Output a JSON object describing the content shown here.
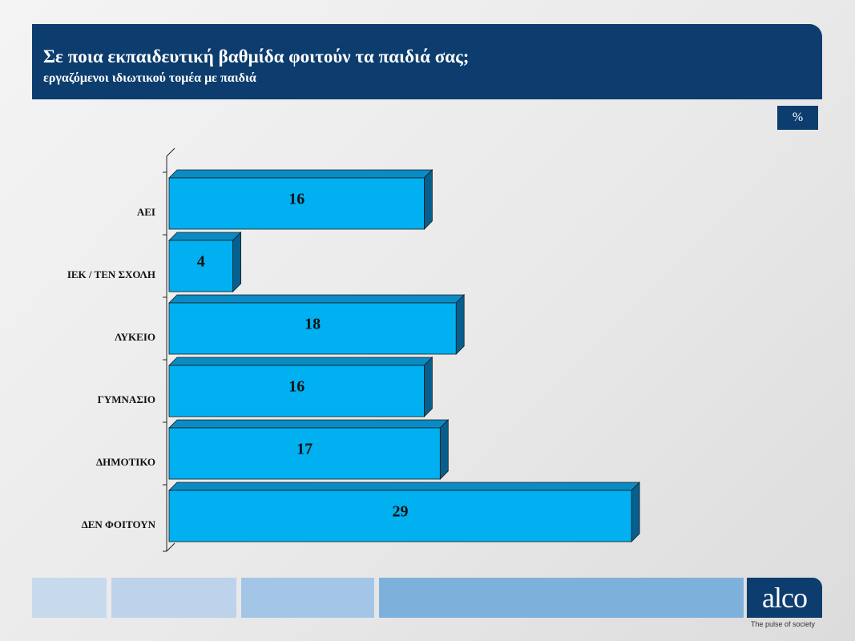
{
  "header": {
    "title": "Σε ποια εκπαιδευτική βαθμίδα φοιτούν τα παιδιά σας;",
    "subtitle": "εργαζόμενοι ιδιωτικού τομέα με παιδιά"
  },
  "unit_badge": "%",
  "logo": {
    "text": "alco",
    "tagline": "The pulse of society"
  },
  "colors": {
    "header_bg": "#0c3d6e",
    "bar_face": "#00b0f0",
    "bar_top": "#0a8bc4",
    "bar_side": "#065f8d",
    "footer_blocks": [
      "#c7d9ec",
      "#bcd3eb",
      "#a4c6e6",
      "#7eb0dc"
    ]
  },
  "chart_data": {
    "type": "bar",
    "orientation": "horizontal",
    "style": "3d",
    "categories": [
      "ΑΕΙ",
      "ΙΕΚ / ΤΕΝ ΣΧΟΛΗ",
      "ΛΥΚΕΙΟ",
      "ΓΥΜΝΑΣΙΟ",
      "ΔΗΜΟΤΙΚΟ",
      "ΔΕΝ ΦΟΙΤΟΥΝ"
    ],
    "values": [
      16,
      4,
      18,
      16,
      17,
      29
    ],
    "data_labels": [
      "16",
      "4",
      "18",
      "16",
      "17",
      "29"
    ],
    "unit": "%",
    "title": "",
    "xlabel": "",
    "ylabel": "",
    "xlim": [
      0,
      29
    ],
    "grid": false,
    "legend": "none"
  }
}
